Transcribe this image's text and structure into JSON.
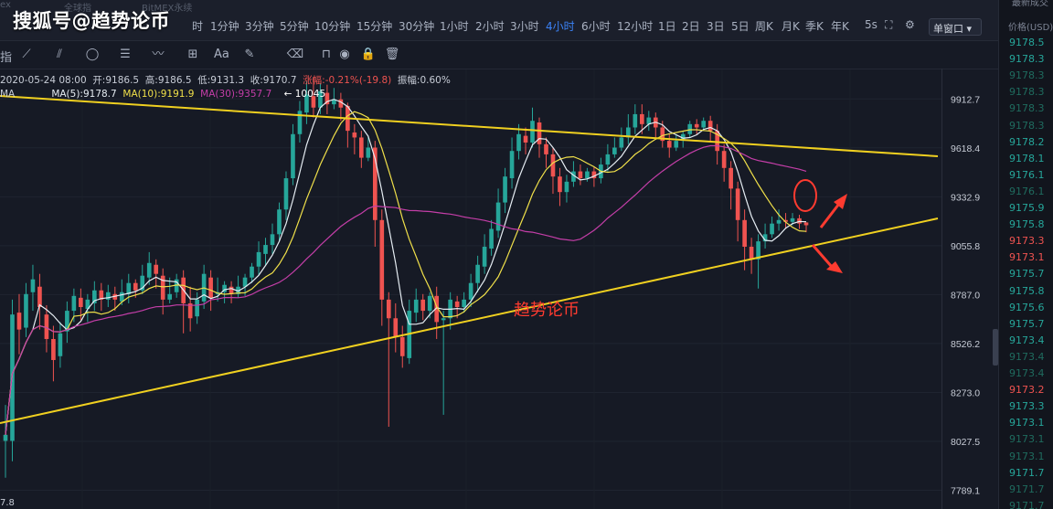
{
  "watermark": "搜狐号@趋势论币",
  "ghost_tabs": [
    "ex",
    "全球指",
    "BitMEX永续"
  ],
  "timeframes": [
    "时",
    "1分钟",
    "3分钟",
    "5分钟",
    "10分钟",
    "15分钟",
    "30分钟",
    "1小时",
    "2小时",
    "3小时",
    "4小时",
    "6小时",
    "12小时",
    "1日",
    "2日",
    "3日",
    "5日",
    "周K",
    "月K",
    "季K",
    "年K",
    "5s"
  ],
  "active_timeframe": "4小时",
  "layout_select": "单窗口",
  "toolbar": {
    "indicator_label": "指",
    "text_tool_label": "Aa"
  },
  "info_bar": {
    "date": "2020-05-24 08:00",
    "open": "开:9186.5",
    "high": "高:9186.5",
    "low": "低:9131.3",
    "close": "收:9170.7",
    "change": "涨幅:-0.21%(-19.8)",
    "amplitude": "振幅:0.60%"
  },
  "ma_row": {
    "ma_label": "MA",
    "ma5": "MA(5):9178.7",
    "ma10": "MA(10):9191.9",
    "ma30": "MA(30):9357.7",
    "peak_marker": "← 10045"
  },
  "annotation_text": "趋势论币",
  "bottom_label": "7.8",
  "right_panel": {
    "header": "价格(USD)",
    "top_label": "最新成交",
    "prices": [
      {
        "v": "9178.5",
        "c": "#26a69a"
      },
      {
        "v": "9178.3",
        "c": "#26a69a"
      },
      {
        "v": "9178.3",
        "c": "#1f6b5e"
      },
      {
        "v": "9178.3",
        "c": "#1f6b5e"
      },
      {
        "v": "9178.3",
        "c": "#1f6b5e"
      },
      {
        "v": "9178.3",
        "c": "#1f6b5e"
      },
      {
        "v": "9178.2",
        "c": "#26a69a"
      },
      {
        "v": "9178.1",
        "c": "#26a69a"
      },
      {
        "v": "9176.1",
        "c": "#26a69a"
      },
      {
        "v": "9176.1",
        "c": "#1f6b5e"
      },
      {
        "v": "9175.9",
        "c": "#26a69a"
      },
      {
        "v": "9175.8",
        "c": "#26a69a"
      },
      {
        "v": "9173.3",
        "c": "#ef5350"
      },
      {
        "v": "9173.1",
        "c": "#ef5350"
      },
      {
        "v": "9175.7",
        "c": "#26a69a"
      },
      {
        "v": "9175.8",
        "c": "#26a69a"
      },
      {
        "v": "9175.6",
        "c": "#26a69a"
      },
      {
        "v": "9175.7",
        "c": "#26a69a"
      },
      {
        "v": "9173.4",
        "c": "#26a69a"
      },
      {
        "v": "9173.4",
        "c": "#1f6b5e"
      },
      {
        "v": "9173.4",
        "c": "#1f6b5e"
      },
      {
        "v": "9173.2",
        "c": "#ef5350"
      },
      {
        "v": "9173.3",
        "c": "#26a69a"
      },
      {
        "v": "9173.1",
        "c": "#26a69a"
      },
      {
        "v": "9173.1",
        "c": "#1f6b5e"
      },
      {
        "v": "9173.1",
        "c": "#1f6b5e"
      },
      {
        "v": "9171.7",
        "c": "#26a69a"
      },
      {
        "v": "9171.7",
        "c": "#1f6b5e"
      },
      {
        "v": "9171.7",
        "c": "#1f6b5e"
      }
    ]
  },
  "chart_data": {
    "type": "candlestick",
    "interval": "4小时",
    "y_ticks": [
      9912.7,
      9618.4,
      9332.9,
      9055.8,
      8787.0,
      8526.2,
      8273.0,
      8027.5,
      7789.1
    ],
    "ylim": [
      7700,
      10100
    ],
    "colors": {
      "up": "#26a69a",
      "down": "#ef5350",
      "ma5": "#e6edf3",
      "ma10": "#f0e04a",
      "ma30": "#c43ea8",
      "trendline": "#f0d020",
      "annotation": "#ff3b30"
    },
    "candles": [
      [
        8030,
        8060,
        7850,
        8210
      ],
      [
        8030,
        8680,
        7930,
        8760
      ],
      [
        8690,
        8600,
        8470,
        8790
      ],
      [
        8610,
        8790,
        8560,
        8850
      ],
      [
        8800,
        8870,
        8700,
        8950
      ],
      [
        8830,
        8720,
        8600,
        8900
      ],
      [
        8680,
        8550,
        8480,
        8730
      ],
      [
        8550,
        8440,
        8330,
        8620
      ],
      [
        8460,
        8580,
        8400,
        8640
      ],
      [
        8590,
        8700,
        8530,
        8750
      ],
      [
        8700,
        8780,
        8640,
        8820
      ],
      [
        8770,
        8720,
        8650,
        8820
      ],
      [
        8710,
        8760,
        8640,
        8790
      ],
      [
        8740,
        8810,
        8700,
        8860
      ],
      [
        8810,
        8760,
        8700,
        8850
      ],
      [
        8760,
        8800,
        8720,
        8840
      ],
      [
        8790,
        8760,
        8700,
        8830
      ],
      [
        8750,
        8800,
        8730,
        8870
      ],
      [
        8790,
        8850,
        8740,
        8900
      ],
      [
        8850,
        8810,
        8770,
        8870
      ],
      [
        8810,
        8890,
        8790,
        8950
      ],
      [
        8880,
        8960,
        8840,
        9020
      ],
      [
        8950,
        8900,
        8820,
        8980
      ],
      [
        8890,
        8760,
        8680,
        8930
      ],
      [
        8760,
        8790,
        8740,
        8880
      ],
      [
        8800,
        8870,
        8770,
        8900
      ],
      [
        8880,
        8740,
        8580,
        8920
      ],
      [
        8740,
        8660,
        8590,
        8830
      ],
      [
        8670,
        8760,
        8630,
        8800
      ],
      [
        8750,
        8900,
        8710,
        8950
      ],
      [
        8880,
        8770,
        8700,
        8920
      ],
      [
        8790,
        8800,
        8750,
        8880
      ],
      [
        8800,
        8840,
        8740,
        8860
      ],
      [
        8830,
        8790,
        8740,
        8860
      ],
      [
        8790,
        8830,
        8770,
        8890
      ],
      [
        8830,
        8880,
        8780,
        8900
      ],
      [
        8880,
        8940,
        8850,
        8960
      ],
      [
        8940,
        9020,
        8890,
        9080
      ],
      [
        9010,
        9060,
        8950,
        9100
      ],
      [
        9060,
        9120,
        9010,
        9180
      ],
      [
        9120,
        9260,
        9080,
        9300
      ],
      [
        9260,
        9440,
        9200,
        9480
      ],
      [
        9440,
        9700,
        9400,
        9760
      ],
      [
        9700,
        9840,
        9650,
        9900
      ],
      [
        9830,
        9940,
        9760,
        10020
      ],
      [
        9930,
        9860,
        9800,
        10045
      ],
      [
        9860,
        9960,
        9820,
        10010
      ],
      [
        9950,
        9880,
        9820,
        10000
      ],
      [
        9880,
        9910,
        9850,
        9980
      ],
      [
        9910,
        9860,
        9780,
        9950
      ],
      [
        9870,
        9720,
        9620,
        9890
      ],
      [
        9710,
        9680,
        9580,
        9760
      ],
      [
        9680,
        9560,
        9500,
        9720
      ],
      [
        9560,
        9620,
        9540,
        9690
      ],
      [
        9620,
        9200,
        9050,
        9660
      ],
      [
        9200,
        8760,
        8620,
        9260
      ],
      [
        8760,
        8660,
        8100,
        8800
      ],
      [
        8660,
        8560,
        8480,
        8740
      ],
      [
        8560,
        8460,
        8400,
        8620
      ],
      [
        8450,
        8700,
        8420,
        8760
      ],
      [
        8690,
        8760,
        8640,
        8820
      ],
      [
        8760,
        8700,
        8650,
        8790
      ],
      [
        8700,
        8780,
        8660,
        8800
      ],
      [
        8780,
        8640,
        8550,
        8830
      ],
      [
        8650,
        8660,
        8160,
        8700
      ],
      [
        8660,
        8760,
        8600,
        8800
      ],
      [
        8750,
        8720,
        8660,
        8780
      ],
      [
        8720,
        8760,
        8690,
        8800
      ],
      [
        8760,
        8850,
        8720,
        8900
      ],
      [
        8850,
        8950,
        8800,
        9000
      ],
      [
        8940,
        9050,
        8900,
        9120
      ],
      [
        9040,
        9150,
        9000,
        9200
      ],
      [
        9140,
        9300,
        9100,
        9380
      ],
      [
        9300,
        9450,
        9240,
        9500
      ],
      [
        9440,
        9600,
        9380,
        9680
      ],
      [
        9600,
        9700,
        9550,
        9760
      ],
      [
        9690,
        9650,
        9580,
        9740
      ],
      [
        9650,
        9780,
        9620,
        9860
      ],
      [
        9770,
        9640,
        9560,
        9800
      ],
      [
        9640,
        9580,
        9500,
        9680
      ],
      [
        9580,
        9450,
        9350,
        9620
      ],
      [
        9450,
        9360,
        9280,
        9500
      ],
      [
        9360,
        9420,
        9300,
        9460
      ],
      [
        9420,
        9480,
        9390,
        9540
      ],
      [
        9480,
        9440,
        9400,
        9520
      ],
      [
        9440,
        9480,
        9420,
        9500
      ],
      [
        9480,
        9440,
        9390,
        9510
      ],
      [
        9440,
        9520,
        9410,
        9560
      ],
      [
        9520,
        9580,
        9480,
        9640
      ],
      [
        9580,
        9620,
        9560,
        9680
      ],
      [
        9620,
        9680,
        9600,
        9740
      ],
      [
        9680,
        9740,
        9640,
        9820
      ],
      [
        9740,
        9820,
        9700,
        9880
      ],
      [
        9820,
        9760,
        9700,
        9880
      ],
      [
        9760,
        9800,
        9720,
        9840
      ],
      [
        9800,
        9740,
        9680,
        9830
      ],
      [
        9740,
        9660,
        9620,
        9780
      ],
      [
        9660,
        9620,
        9560,
        9700
      ],
      [
        9620,
        9660,
        9600,
        9700
      ],
      [
        9660,
        9700,
        9620,
        9720
      ],
      [
        9700,
        9760,
        9680,
        9780
      ],
      [
        9760,
        9740,
        9700,
        9790
      ],
      [
        9740,
        9780,
        9720,
        9800
      ],
      [
        9780,
        9720,
        9660,
        9810
      ],
      [
        9720,
        9600,
        9520,
        9760
      ],
      [
        9600,
        9500,
        9420,
        9640
      ],
      [
        9500,
        9380,
        9260,
        9540
      ],
      [
        9380,
        9200,
        9080,
        9420
      ],
      [
        9200,
        9050,
        8920,
        9260
      ],
      [
        9050,
        8980,
        8900,
        9100
      ],
      [
        8980,
        9080,
        8820,
        9120
      ],
      [
        9080,
        9120,
        9040,
        9180
      ],
      [
        9120,
        9180,
        9100,
        9220
      ],
      [
        9180,
        9200,
        9140,
        9260
      ],
      [
        9200,
        9190,
        9150,
        9240
      ],
      [
        9190,
        9210,
        9170,
        9240
      ],
      [
        9210,
        9180,
        9150,
        9230
      ],
      [
        9186.5,
        9170.7,
        9131.3,
        9186.5
      ]
    ]
  }
}
